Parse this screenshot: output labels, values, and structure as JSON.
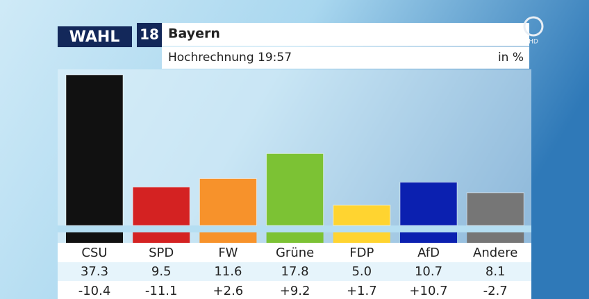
{
  "chart_data": {
    "type": "bar",
    "logo": "WAHL",
    "logo_number": "18",
    "title": "Bayern",
    "subtitle": "Hochrechnung 19:57",
    "unit": "in %",
    "channel_tag": "HD",
    "categories": [
      "CSU",
      "SPD",
      "FW",
      "Grüne",
      "FDP",
      "AfD",
      "Andere"
    ],
    "values": [
      37.3,
      9.5,
      11.6,
      17.8,
      5.0,
      10.7,
      8.1
    ],
    "value_labels": [
      "37.3",
      "9.5",
      "11.6",
      "17.8",
      "5.0",
      "10.7",
      "8.1"
    ],
    "changes": [
      "-10.4",
      "-11.1",
      "+2.6",
      "+9.2",
      "+1.7",
      "+10.7",
      "-2.7"
    ],
    "colors": [
      "#111111",
      "#d42222",
      "#f7922b",
      "#7cc234",
      "#ffd430",
      "#0b20b0",
      "#767676"
    ]
  }
}
